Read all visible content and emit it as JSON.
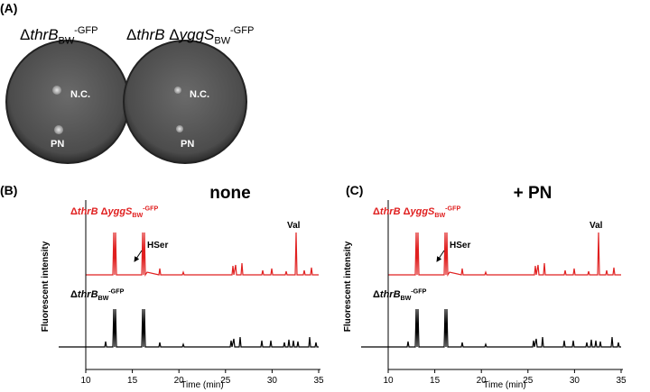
{
  "panel_a": {
    "label": "(A)",
    "strains": [
      {
        "parts": [
          {
            "text": "Δ"
          },
          {
            "text": "thrB",
            "italic": true
          }
        ],
        "sub": "BW",
        "sup": "-GFP"
      },
      {
        "parts": [
          {
            "text": "Δ"
          },
          {
            "text": "thrB",
            "italic": true
          },
          {
            "text": " Δ"
          },
          {
            "text": "yggS",
            "italic": true
          }
        ],
        "sub": "BW",
        "sup": "-GFP"
      }
    ],
    "spots": [
      "N.C.",
      "PN"
    ]
  },
  "chromatograms": [
    {
      "label": "(B)",
      "title": "none",
      "y_label": "Fluorescent intensity",
      "x_label": "Time (min)",
      "xlim": [
        10,
        35
      ],
      "xticks": [
        10,
        15,
        20,
        25,
        30,
        35
      ],
      "peak_labels": [
        "HSer",
        "Val"
      ],
      "traces": [
        {
          "color": "#e02020",
          "parts": [
            {
              "text": "Δ"
            },
            {
              "text": "thrB",
              "italic": true
            },
            {
              "text": " Δ"
            },
            {
              "text": "yggS",
              "italic": true
            }
          ],
          "sub": "BW",
          "sup": "-GFP"
        },
        {
          "color": "#000000",
          "parts": [
            {
              "text": "Δ"
            },
            {
              "text": "thrB",
              "italic": true
            }
          ],
          "sub": "BW",
          "sup": "-GFP"
        }
      ]
    },
    {
      "label": "(C)",
      "title": "+ PN",
      "y_label": "Fluorescent intensity",
      "x_label": "Time (min)",
      "xlim": [
        10,
        35
      ],
      "xticks": [
        10,
        15,
        20,
        25,
        30,
        35
      ],
      "peak_labels": [
        "HSer",
        "Val"
      ],
      "traces": [
        {
          "color": "#e02020",
          "parts": [
            {
              "text": "Δ"
            },
            {
              "text": "thrB",
              "italic": true
            },
            {
              "text": " Δ"
            },
            {
              "text": "yggS",
              "italic": true
            }
          ],
          "sub": "BW",
          "sup": "-GFP"
        },
        {
          "color": "#000000",
          "parts": [
            {
              "text": "Δ"
            },
            {
              "text": "thrB",
              "italic": true
            }
          ],
          "sub": "BW",
          "sup": "-GFP"
        }
      ]
    }
  ]
}
